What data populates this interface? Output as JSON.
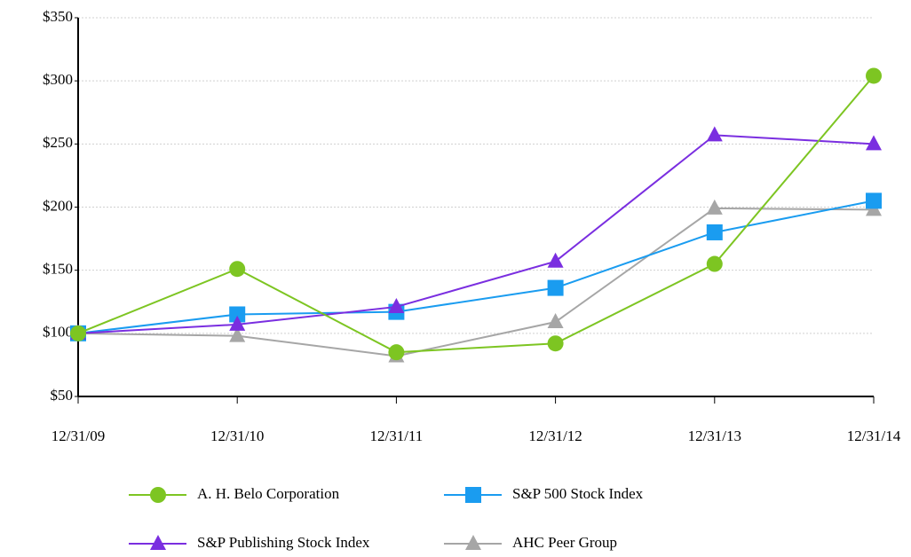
{
  "chart_data": {
    "type": "line",
    "categories": [
      "12/31/09",
      "12/31/10",
      "12/31/11",
      "12/31/12",
      "12/31/13",
      "12/31/14"
    ],
    "series": [
      {
        "name": "A. H. Belo Corporation",
        "color": "#7dc522",
        "marker": "circle",
        "values": [
          100,
          151,
          85,
          92,
          155,
          304
        ]
      },
      {
        "name": "S&P 500 Stock Index",
        "color": "#1a9cf0",
        "marker": "square",
        "values": [
          100,
          115,
          117,
          136,
          180,
          205
        ]
      },
      {
        "name": "S&P Publishing Stock Index",
        "color": "#7a2ee0",
        "marker": "triangle",
        "values": [
          100,
          107,
          121,
          157,
          257,
          250
        ]
      },
      {
        "name": "AHC Peer Group",
        "color": "#a6a6a6",
        "marker": "triangle",
        "values": [
          100,
          98,
          82,
          109,
          199,
          198
        ]
      }
    ],
    "ylim": [
      50,
      350
    ],
    "yticks": [
      {
        "value": 50,
        "label": "$50"
      },
      {
        "value": 100,
        "label": "$100"
      },
      {
        "value": 150,
        "label": "$150"
      },
      {
        "value": 200,
        "label": "$200"
      },
      {
        "value": 250,
        "label": "$250"
      },
      {
        "value": 300,
        "label": "$300"
      },
      {
        "value": 350,
        "label": "$350"
      }
    ],
    "grid": true
  }
}
